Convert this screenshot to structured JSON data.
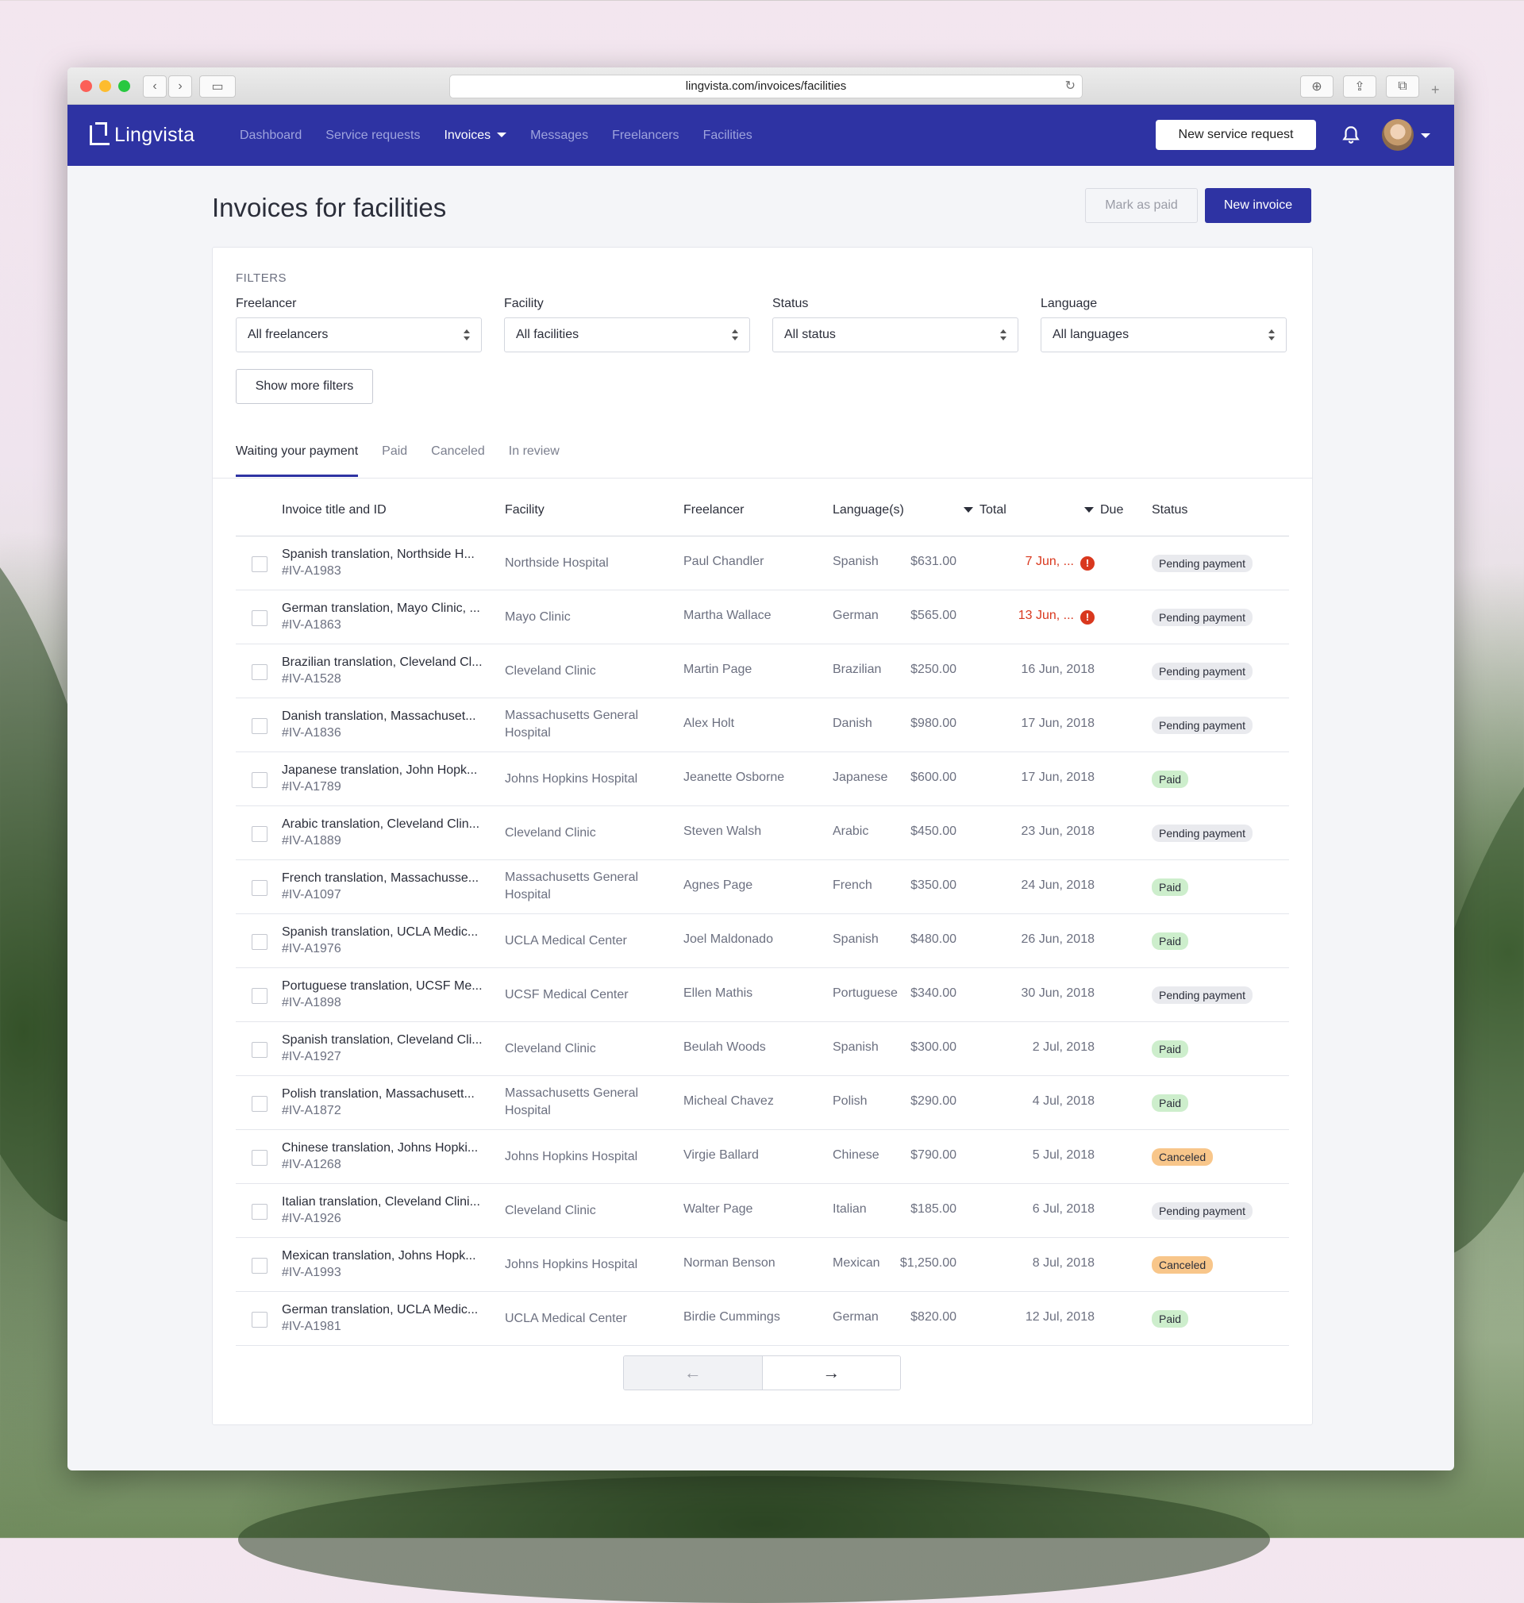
{
  "browser": {
    "url": "lingvista.com/invoices/facilities"
  },
  "nav": {
    "brand": "Lingvista",
    "items": [
      "Dashboard",
      "Service requests",
      "Invoices",
      "Messages",
      "Freelancers",
      "Facilities"
    ],
    "active": "Invoices",
    "new_request": "New service request"
  },
  "page": {
    "title": "Invoices for facilities",
    "mark_paid": "Mark as paid",
    "new_invoice": "New invoice"
  },
  "filters": {
    "heading": "FILTERS",
    "freelancer": {
      "label": "Freelancer",
      "value": "All freelancers"
    },
    "facility": {
      "label": "Facility",
      "value": "All facilities"
    },
    "status": {
      "label": "Status",
      "value": "All status"
    },
    "language": {
      "label": "Language",
      "value": "All languages"
    },
    "more": "Show more filters"
  },
  "tabs": [
    "Waiting your payment",
    "Paid",
    "Canceled",
    "In review"
  ],
  "table": {
    "headers": {
      "title": "Invoice title and ID",
      "facility": "Facility",
      "freelancer": "Freelancer",
      "languages": "Language(s)",
      "total": "Total",
      "due": "Due",
      "status": "Status"
    },
    "rows": [
      {
        "title": "Spanish translation, Northside H...",
        "id": "#IV-A1983",
        "facility": "Northside Hospital",
        "freelancer": "Paul Chandler",
        "language": "Spanish",
        "total": "$631.00",
        "due": "7 Jun, ...",
        "overdue": true,
        "status": "Pending payment"
      },
      {
        "title": "German translation, Mayo Clinic, ...",
        "id": "#IV-A1863",
        "facility": "Mayo Clinic",
        "freelancer": "Martha Wallace",
        "language": "German",
        "total": "$565.00",
        "due": "13 Jun, ...",
        "overdue": true,
        "status": "Pending payment"
      },
      {
        "title": "Brazilian translation, Cleveland Cl...",
        "id": "#IV-A1528",
        "facility": "Cleveland Clinic",
        "freelancer": "Martin Page",
        "language": "Brazilian",
        "total": "$250.00",
        "due": "16 Jun, 2018",
        "overdue": false,
        "status": "Pending payment"
      },
      {
        "title": "Danish translation, Massachuset...",
        "id": "#IV-A1836",
        "facility": "Massachusetts General Hospital",
        "freelancer": "Alex Holt",
        "language": "Danish",
        "total": "$980.00",
        "due": "17 Jun, 2018",
        "overdue": false,
        "status": "Pending payment"
      },
      {
        "title": "Japanese translation, John Hopk...",
        "id": "#IV-A1789",
        "facility": "Johns Hopkins Hospital",
        "freelancer": "Jeanette Osborne",
        "language": "Japanese",
        "total": "$600.00",
        "due": "17 Jun, 2018",
        "overdue": false,
        "status": "Paid"
      },
      {
        "title": "Arabic translation, Cleveland Clin...",
        "id": "#IV-A1889",
        "facility": "Cleveland Clinic",
        "freelancer": "Steven Walsh",
        "language": "Arabic",
        "total": "$450.00",
        "due": "23 Jun, 2018",
        "overdue": false,
        "status": "Pending payment"
      },
      {
        "title": "French translation, Massachusse...",
        "id": "#IV-A1097",
        "facility": "Massachusetts General Hospital",
        "freelancer": "Agnes Page",
        "language": "French",
        "total": "$350.00",
        "due": "24 Jun, 2018",
        "overdue": false,
        "status": "Paid"
      },
      {
        "title": "Spanish translation, UCLA Medic...",
        "id": "#IV-A1976",
        "facility": "UCLA Medical Center",
        "freelancer": "Joel Maldonado",
        "language": "Spanish",
        "total": "$480.00",
        "due": "26 Jun, 2018",
        "overdue": false,
        "status": "Paid"
      },
      {
        "title": "Portuguese translation, UCSF Me...",
        "id": "#IV-A1898",
        "facility": "UCSF Medical Center",
        "freelancer": "Ellen Mathis",
        "language": "Portuguese",
        "total": "$340.00",
        "due": "30 Jun, 2018",
        "overdue": false,
        "status": "Pending payment"
      },
      {
        "title": "Spanish translation, Cleveland Cli...",
        "id": "#IV-A1927",
        "facility": "Cleveland Clinic",
        "freelancer": "Beulah Woods",
        "language": "Spanish",
        "total": "$300.00",
        "due": "2 Jul, 2018",
        "overdue": false,
        "status": "Paid"
      },
      {
        "title": "Polish translation, Massachusett...",
        "id": "#IV-A1872",
        "facility": "Massachusetts General Hospital",
        "freelancer": "Micheal Chavez",
        "language": "Polish",
        "total": "$290.00",
        "due": "4 Jul, 2018",
        "overdue": false,
        "status": "Paid"
      },
      {
        "title": "Chinese translation, Johns Hopki...",
        "id": "#IV-A1268",
        "facility": "Johns Hopkins Hospital",
        "freelancer": "Virgie Ballard",
        "language": "Chinese",
        "total": "$790.00",
        "due": "5 Jul, 2018",
        "overdue": false,
        "status": "Canceled"
      },
      {
        "title": "Italian translation, Cleveland Clini...",
        "id": "#IV-A1926",
        "facility": "Cleveland Clinic",
        "freelancer": "Walter Page",
        "language": "Italian",
        "total": "$185.00",
        "due": "6 Jul, 2018",
        "overdue": false,
        "status": "Pending payment"
      },
      {
        "title": "Mexican translation, Johns Hopk...",
        "id": "#IV-A1993",
        "facility": "Johns Hopkins Hospital",
        "freelancer": "Norman Benson",
        "language": "Mexican",
        "total": "$1,250.00",
        "due": "8 Jul, 2018",
        "overdue": false,
        "status": "Canceled"
      },
      {
        "title": "German translation, UCLA Medic...",
        "id": "#IV-A1981",
        "facility": "UCLA Medical Center",
        "freelancer": "Birdie Cummings",
        "language": "German",
        "total": "$820.00",
        "due": "12 Jul, 2018",
        "overdue": false,
        "status": "Paid"
      }
    ]
  },
  "pagination": {
    "prev_icon": "arrow-left-icon",
    "next_icon": "arrow-right-icon"
  },
  "colors": {
    "brand": "#2e33a3",
    "overdue": "#d9381e",
    "paid": "#cdeecc",
    "canceled": "#f8c68a",
    "pending": "#e9eaee"
  }
}
